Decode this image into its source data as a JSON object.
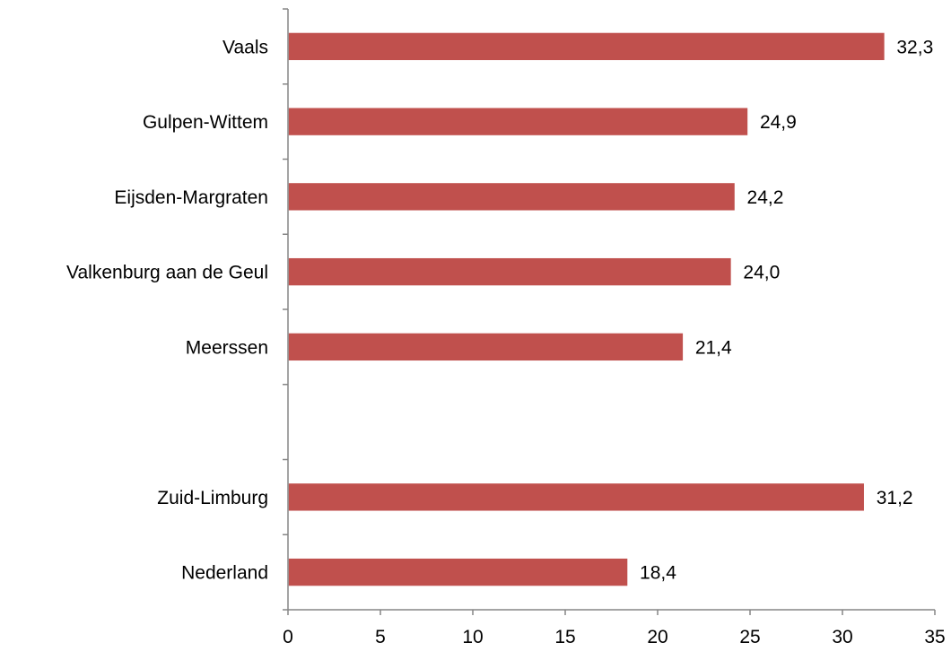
{
  "chart_data": {
    "type": "bar",
    "orientation": "horizontal",
    "categories": [
      "Vaals",
      "Gulpen-Wittem",
      "Eijsden-Margraten",
      "Valkenburg aan de Geul",
      "Meerssen",
      "",
      "Zuid-Limburg",
      "Nederland"
    ],
    "values": [
      32.3,
      24.9,
      24.2,
      24.0,
      21.4,
      null,
      31.2,
      18.4
    ],
    "value_labels": [
      "32,3",
      "24,9",
      "24,2",
      "24,0",
      "21,4",
      "",
      "31,2",
      "18,4"
    ],
    "x_ticks": [
      "0",
      "5",
      "10",
      "15",
      "20",
      "25",
      "30",
      "35"
    ],
    "xlim": [
      0,
      35
    ],
    "title": "",
    "xlabel": "",
    "ylabel": "",
    "grid": false,
    "legend": "none",
    "bar_color": "#c0504d",
    "bar_edge_color": "#ffffff",
    "axis_color": "#868686"
  }
}
